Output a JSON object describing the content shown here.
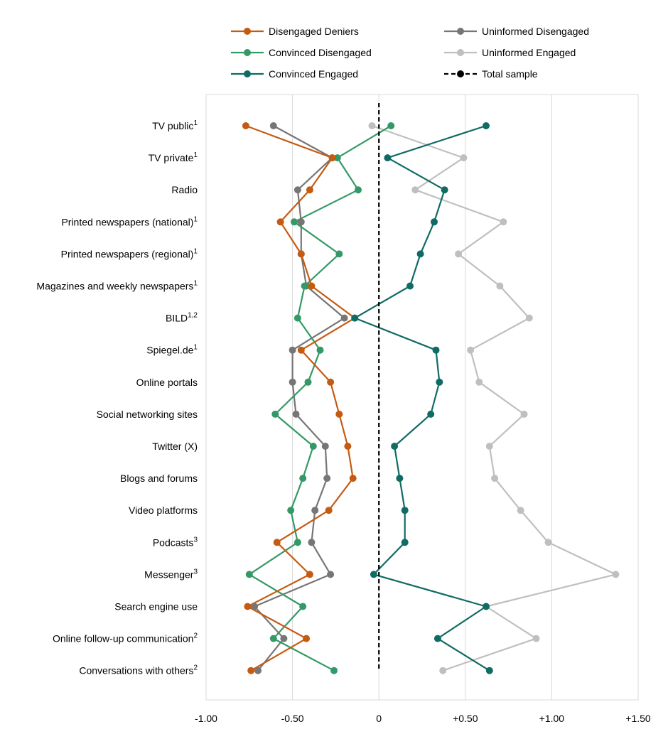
{
  "chart_data": {
    "type": "line",
    "orientation": "horizontal-profile",
    "title": "",
    "xlabel": "",
    "ylabel": "",
    "xlim": [
      -1.0,
      1.5
    ],
    "x_ticks": [
      -1.0,
      -0.5,
      0,
      0.5,
      1.0,
      1.5
    ],
    "x_tick_labels": [
      "-1.00",
      "-0.50",
      "0",
      "+0.50",
      "+1.00",
      "+1.50"
    ],
    "grid": "vertical",
    "legend_position": "top",
    "categories": [
      {
        "label": "TV public",
        "sup": "1"
      },
      {
        "label": "TV private",
        "sup": "1"
      },
      {
        "label": "Radio",
        "sup": ""
      },
      {
        "label": "Printed newspapers (national)",
        "sup": "1"
      },
      {
        "label": "Printed newspapers (regional)",
        "sup": "1"
      },
      {
        "label": "Magazines and weekly newspapers",
        "sup": "1"
      },
      {
        "label": "BILD",
        "sup": "1,2"
      },
      {
        "label": "Spiegel.de",
        "sup": "1"
      },
      {
        "label": "Online portals",
        "sup": ""
      },
      {
        "label": "Social networking sites",
        "sup": ""
      },
      {
        "label": "Twitter (X)",
        "sup": ""
      },
      {
        "label": "Blogs and forums",
        "sup": ""
      },
      {
        "label": "Video platforms",
        "sup": ""
      },
      {
        "label": "Podcasts",
        "sup": "3"
      },
      {
        "label": "Messenger",
        "sup": "3"
      },
      {
        "label": "Search engine use",
        "sup": ""
      },
      {
        "label": "Online follow-up communication",
        "sup": "2"
      },
      {
        "label": "Conversations with others",
        "sup": "2"
      }
    ],
    "series": [
      {
        "name": "Disengaged Deniers",
        "color": "#C55A11",
        "dashed": false,
        "values": [
          -0.77,
          -0.27,
          -0.4,
          -0.57,
          -0.45,
          -0.39,
          -0.14,
          -0.45,
          -0.28,
          -0.23,
          -0.18,
          -0.15,
          -0.29,
          -0.59,
          -0.4,
          -0.76,
          -0.42,
          -0.74
        ]
      },
      {
        "name": "Convinced Disengaged",
        "color": "#339966",
        "dashed": false,
        "values": [
          0.07,
          -0.24,
          -0.12,
          -0.49,
          -0.23,
          -0.43,
          -0.47,
          -0.34,
          -0.41,
          -0.6,
          -0.38,
          -0.44,
          -0.51,
          -0.47,
          -0.75,
          -0.44,
          -0.61,
          -0.26
        ]
      },
      {
        "name": "Convinced Engaged",
        "color": "#0F6B64",
        "dashed": false,
        "values": [
          0.62,
          0.05,
          0.38,
          0.32,
          0.24,
          0.18,
          -0.14,
          0.33,
          0.35,
          0.3,
          0.09,
          0.12,
          0.15,
          0.15,
          -0.03,
          0.62,
          0.34,
          0.64
        ]
      },
      {
        "name": "Uninformed Disengaged",
        "color": "#767676",
        "dashed": false,
        "values": [
          -0.61,
          -0.27,
          -0.47,
          -0.45,
          -0.45,
          -0.42,
          -0.2,
          -0.5,
          -0.5,
          -0.48,
          -0.31,
          -0.3,
          -0.37,
          -0.39,
          -0.28,
          -0.72,
          -0.55,
          -0.7
        ]
      },
      {
        "name": "Uninformed Engaged",
        "color": "#BFBFBF",
        "dashed": false,
        "values": [
          -0.04,
          0.49,
          0.21,
          0.72,
          0.46,
          0.7,
          0.87,
          0.53,
          0.58,
          0.84,
          0.64,
          0.67,
          0.82,
          0.98,
          1.37,
          0.62,
          0.91,
          0.37
        ]
      },
      {
        "name": "Total sample",
        "color": "#000000",
        "dashed": true,
        "values": [
          0,
          0,
          0,
          0,
          0,
          0,
          0,
          0,
          0,
          0,
          0,
          0,
          0,
          0,
          0,
          0,
          0,
          0
        ]
      }
    ],
    "legend": [
      {
        "name": "Disengaged Deniers",
        "color": "#C55A11",
        "dashed": false
      },
      {
        "name": "Uninformed Disengaged",
        "color": "#767676",
        "dashed": false
      },
      {
        "name": "Convinced Disengaged",
        "color": "#339966",
        "dashed": false
      },
      {
        "name": "Uninformed Engaged",
        "color": "#BFBFBF",
        "dashed": false
      },
      {
        "name": "Convinced Engaged",
        "color": "#0F6B64",
        "dashed": false
      },
      {
        "name": "Total sample",
        "color": "#000000",
        "dashed": true
      }
    ]
  }
}
